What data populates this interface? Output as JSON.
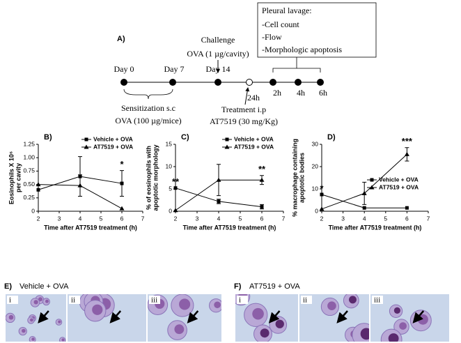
{
  "timeline": {
    "panel_label": "A)",
    "box": {
      "title": "Pleural lavage:",
      "items": [
        "-Cell count",
        "-Flow",
        "-Morphologic apoptosis"
      ]
    },
    "challenge": [
      "Challenge",
      "OVA (1 µg/cavity)"
    ],
    "sensitization": [
      "Sensitization s.c",
      "OVA (100 µg/mice)"
    ],
    "treatment": [
      "Treatment i.p",
      "AT7519 (30 mg/Kg)"
    ],
    "points": [
      "Day 0",
      "Day 7",
      "Day 14",
      "24h",
      "2h",
      "4h",
      "6h"
    ]
  },
  "chart_data": [
    {
      "type": "line",
      "panel_label": "B)",
      "xlabel": "Time after AT7519 treatment (h)",
      "ylabel": [
        "Eosinophils X 10⁶",
        "per cavity"
      ],
      "x": [
        2,
        4,
        6
      ],
      "xlim": [
        2,
        7
      ],
      "xticks": [
        2,
        3,
        4,
        5,
        6,
        7
      ],
      "ylim": [
        0,
        1.25
      ],
      "yticks": [
        0,
        0.25,
        {
          "value": 0.5,
          "label": "0.50"
        },
        0.75,
        {
          "value": 1,
          "label": "1.00"
        },
        1.25
      ],
      "legend": "upper right",
      "series": [
        {
          "name": "Vehicle + OVA",
          "color": "#000000",
          "marker": "square",
          "values": [
            0.4,
            0.65,
            0.52
          ],
          "errors": [
            null,
            0.37,
            0.24
          ]
        },
        {
          "name": "AT7519 + OVA",
          "color": "#000000",
          "marker": "triangle",
          "values": [
            0.5,
            0.48,
            0.05
          ],
          "errors": [
            null,
            0.2,
            null
          ]
        }
      ],
      "annotations": [
        {
          "text": "*",
          "x": 6
        }
      ]
    },
    {
      "type": "line",
      "panel_label": "C)",
      "xlabel": "Time after AT7519 treatment (h)",
      "ylabel": [
        "% of eosinophils with",
        "apoptotic morphology"
      ],
      "x": [
        2,
        4,
        6
      ],
      "xlim": [
        2,
        7
      ],
      "xticks": [
        2,
        3,
        4,
        5,
        6,
        7
      ],
      "ylim": [
        0,
        15
      ],
      "yticks": [
        0,
        5,
        10,
        15
      ],
      "legend": "upper right",
      "series": [
        {
          "name": "Vehicle + OVA",
          "color": "#000000",
          "marker": "square",
          "values": [
            5.2,
            2.2,
            1.0
          ],
          "errors": [
            null,
            0.5,
            0.5
          ]
        },
        {
          "name": "AT7519 + OVA",
          "color": "#000000",
          "marker": "triangle",
          "values": [
            0.2,
            7,
            7
          ],
          "errors": [
            null,
            3.5,
            1
          ]
        }
      ],
      "annotations": [
        {
          "text": "**",
          "x": 2
        },
        {
          "text": "**",
          "x": 6
        }
      ]
    },
    {
      "type": "line",
      "panel_label": "D)",
      "xlabel": "Time after AT7519 treatment (h)",
      "ylabel": [
        "% macrophage containing",
        "apoptotic bodies"
      ],
      "x": [
        2,
        4,
        6
      ],
      "xlim": [
        2,
        7
      ],
      "xticks": [
        2,
        3,
        4,
        5,
        6,
        7
      ],
      "ylim": [
        0,
        30
      ],
      "yticks": [
        0,
        10,
        20,
        30
      ],
      "legend": "center right",
      "series": [
        {
          "name": "Vehicle + OVA",
          "color": "#000000",
          "marker": "square",
          "values": [
            7.5,
            1.5,
            1.5
          ],
          "errors": [
            null,
            null,
            null
          ]
        },
        {
          "name": "AT7519 + OVA",
          "color": "#000000",
          "marker": "triangle",
          "values": [
            1,
            8,
            25.5
          ],
          "errors": [
            null,
            5,
            3
          ]
        }
      ],
      "annotations": [
        {
          "text": "*",
          "x": 2
        },
        {
          "text": "***",
          "x": 6
        }
      ]
    }
  ],
  "micrographs": [
    {
      "panel_label": "E)",
      "title": "Vehicle + OVA",
      "images": [
        "i",
        "ii",
        "iii"
      ]
    },
    {
      "panel_label": "F)",
      "title": "AT7519 + OVA",
      "images": [
        "i",
        "ii",
        "iii"
      ]
    }
  ]
}
